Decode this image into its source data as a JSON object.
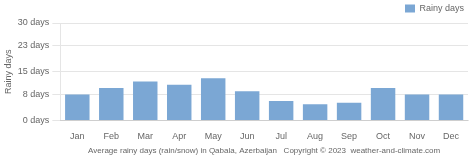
{
  "chart_data": {
    "type": "bar",
    "categories": [
      "Jan",
      "Feb",
      "Mar",
      "Apr",
      "May",
      "Jun",
      "Jul",
      "Aug",
      "Sep",
      "Oct",
      "Nov",
      "Dec"
    ],
    "series": [
      {
        "name": "Rainy days",
        "color": "#7ba7d4",
        "values": [
          8,
          10,
          12,
          11,
          13,
          9,
          6,
          5,
          5.5,
          10,
          8,
          8
        ]
      }
    ],
    "ylim": [
      0,
      30
    ],
    "yticks": [
      {
        "value": 0,
        "label": "0 days"
      },
      {
        "value": 8,
        "label": "8 days"
      },
      {
        "value": 15,
        "label": "15 days"
      },
      {
        "value": 23,
        "label": "23 days"
      },
      {
        "value": 30,
        "label": "30 days"
      }
    ],
    "ylabel": "Rainy days",
    "xlabel": "Average rainy days (rain/snow) in Qabala, Azerbaijan   Copyright © 2023  weather-and-climate.com",
    "grid": true,
    "legend": "upper right"
  }
}
